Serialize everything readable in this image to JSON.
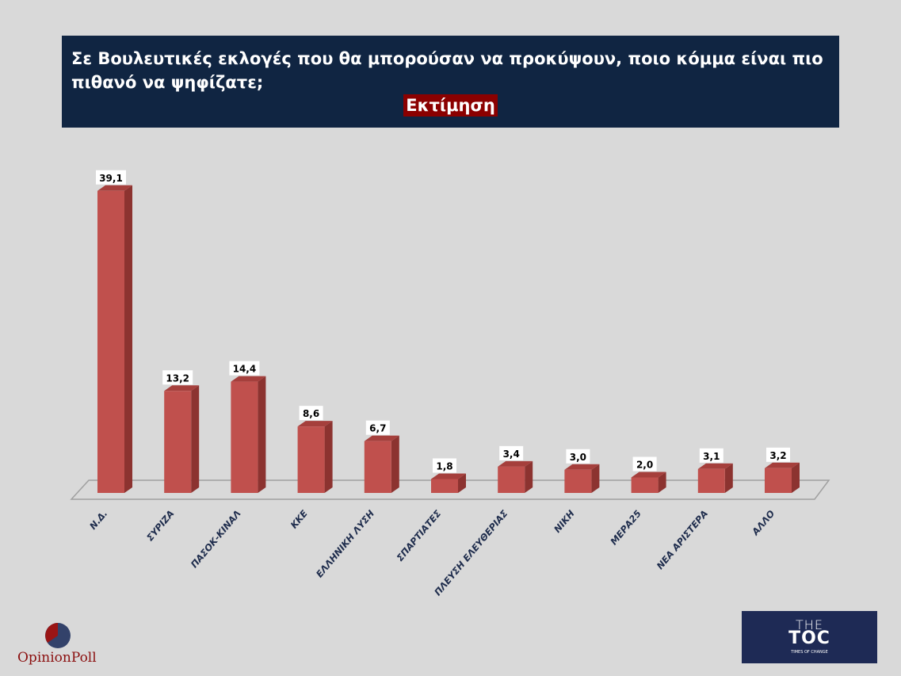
{
  "title": "Σε Βουλευτικές εκλογές που θα μπορούσαν να προκύψουν, ποιο κόμμα είναι πιο πιθανό να ψηφίζατε;",
  "subtitle": "Εκτίμηση",
  "chart_data": {
    "type": "bar",
    "categories": [
      "Ν.Δ.",
      "ΣΥΡΙΖΑ",
      "ΠΑΣΟΚ-ΚΙΝΑΛ",
      "ΚΚΕ",
      "ΕΛΛΗΝΙΚΗ ΛΥΣΗ",
      "ΣΠΑΡΤΙΑΤΕΣ",
      "ΠΛΕΥΣΗ ΕΛΕΥΘΕΡΙΑΣ",
      "ΝΙΚΗ",
      "ΜΕΡΑ25",
      "ΝΕΑ ΑΡΙΣΤΕΡΑ",
      "ΑΛΛΟ"
    ],
    "values": [
      39.1,
      13.2,
      14.4,
      8.6,
      6.7,
      1.8,
      3.4,
      3.0,
      2.0,
      3.1,
      3.2
    ],
    "data_labels": [
      "39,1",
      "13,2",
      "14,4",
      "8,6",
      "6,7",
      "1,8",
      "3,4",
      "3,0",
      "2,0",
      "3,1",
      "3,2"
    ],
    "bar_color": "#c0504d",
    "grid": false,
    "style": "3d-column"
  },
  "logos": {
    "left": "OpinionPoll",
    "right": {
      "line1": "THE",
      "line2": "TOC",
      "line3": "TIMES OF CHANGE"
    }
  }
}
